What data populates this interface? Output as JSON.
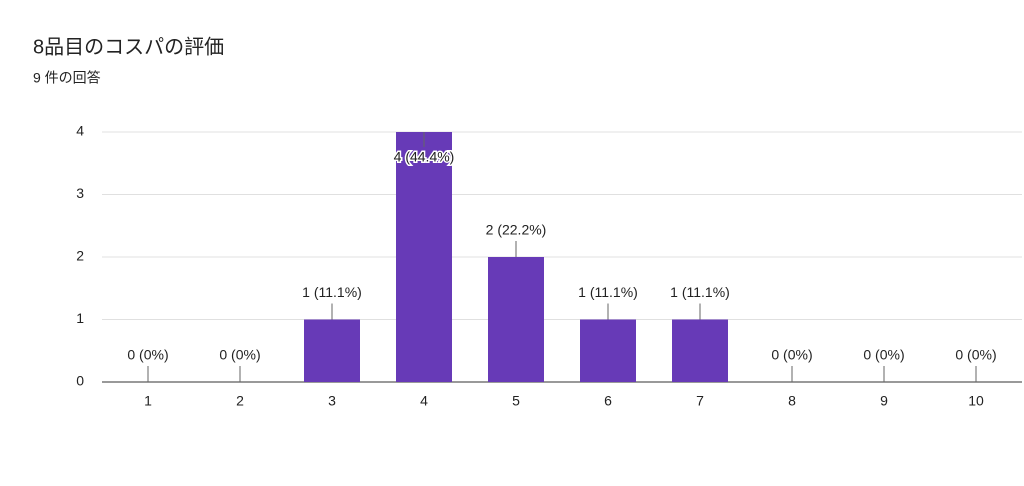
{
  "chart_data": {
    "type": "bar",
    "title": "8品目のコスパの評価",
    "subtitle": "9 件の回答",
    "categories": [
      "1",
      "2",
      "3",
      "4",
      "5",
      "6",
      "7",
      "8",
      "9",
      "10"
    ],
    "values": [
      0,
      0,
      1,
      4,
      2,
      1,
      1,
      0,
      0,
      0
    ],
    "value_labels": [
      "0 (0%)",
      "0 (0%)",
      "1 (11.1%)",
      "4 (44.4%)",
      "2 (22.2%)",
      "1 (11.1%)",
      "1 (11.1%)",
      "0 (0%)",
      "0 (0%)",
      "0 (0%)"
    ],
    "color": "#673ab7",
    "ylim": [
      0,
      4
    ],
    "yticks": [
      0,
      1,
      2,
      3,
      4
    ],
    "grid": true
  }
}
